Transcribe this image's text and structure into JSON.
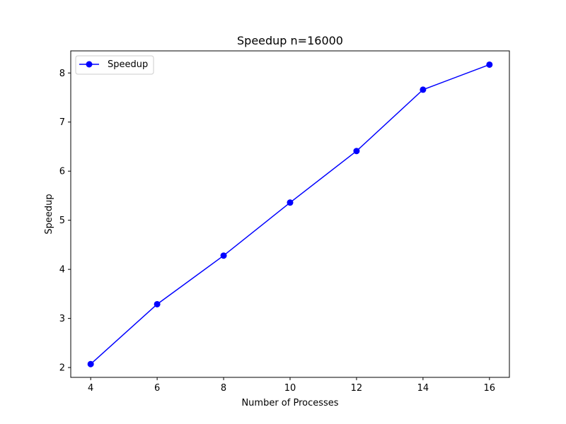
{
  "chart_data": {
    "type": "line",
    "title": "Speedup n=16000",
    "xlabel": "Number of Processes",
    "ylabel": "Speedup",
    "x": [
      4,
      6,
      8,
      10,
      12,
      14,
      16
    ],
    "series": [
      {
        "name": "Speedup",
        "values": [
          2.07,
          3.29,
          4.28,
          5.36,
          6.41,
          7.66,
          8.17
        ],
        "color": "#0000ff",
        "marker": "circle"
      }
    ],
    "xticks": [
      4,
      6,
      8,
      10,
      12,
      14,
      16
    ],
    "yticks": [
      2,
      3,
      4,
      5,
      6,
      7,
      8
    ],
    "xlim": [
      3.4,
      16.6
    ],
    "ylim": [
      1.8,
      8.45
    ],
    "grid": false,
    "legend": "top-left"
  }
}
